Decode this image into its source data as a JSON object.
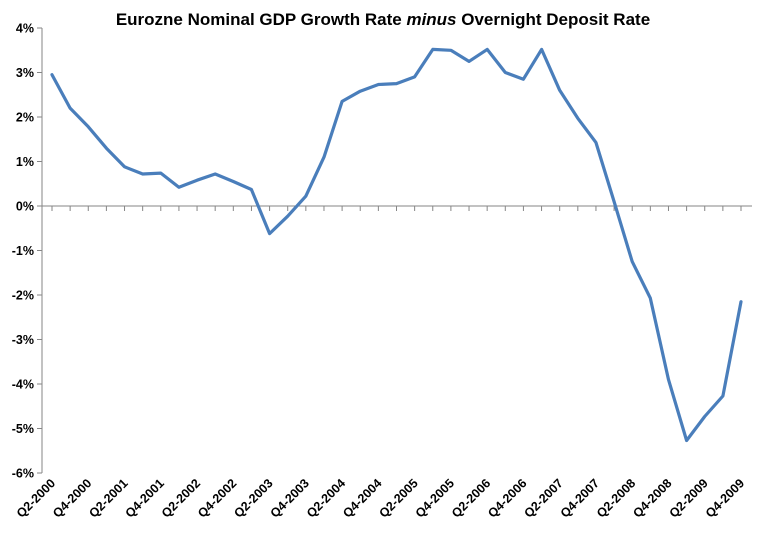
{
  "chart_data": {
    "type": "line",
    "title": {
      "part1": "Eurozne Nominal GDP Growth Rate ",
      "emph": "minus",
      "part2": " Overnight Deposit Rate"
    },
    "xlabel": "",
    "ylabel": "",
    "ylim": [
      -6,
      4
    ],
    "y_ticks": [
      "-6%",
      "-5%",
      "-4%",
      "-3%",
      "-2%",
      "-1%",
      "0%",
      "1%",
      "2%",
      "3%",
      "4%"
    ],
    "grid": false,
    "legend": "none",
    "line_color": "#4A7EBB",
    "x": [
      "Q2-2000",
      "Q3-2000",
      "Q4-2000",
      "Q1-2001",
      "Q2-2001",
      "Q3-2001",
      "Q4-2001",
      "Q1-2002",
      "Q2-2002",
      "Q3-2002",
      "Q4-2002",
      "Q1-2003",
      "Q2-2003",
      "Q3-2003",
      "Q4-2003",
      "Q1-2004",
      "Q2-2004",
      "Q3-2004",
      "Q4-2004",
      "Q1-2005",
      "Q2-2005",
      "Q3-2005",
      "Q4-2005",
      "Q1-2006",
      "Q2-2006",
      "Q3-2006",
      "Q4-2006",
      "Q1-2007",
      "Q2-2007",
      "Q3-2007",
      "Q4-2007",
      "Q1-2008",
      "Q2-2008",
      "Q3-2008",
      "Q4-2008",
      "Q1-2009",
      "Q2-2009",
      "Q3-2009",
      "Q4-2009"
    ],
    "x_tick_labels": [
      "Q2-2000",
      "Q4-2000",
      "Q2-2001",
      "Q4-2001",
      "Q2-2002",
      "Q4-2002",
      "Q2-2003",
      "Q4-2003",
      "Q2-2004",
      "Q4-2004",
      "Q2-2005",
      "Q4-2005",
      "Q2-2006",
      "Q4-2006",
      "Q2-2007",
      "Q4-2007",
      "Q2-2008",
      "Q4-2008",
      "Q2-2009",
      "Q4-2009"
    ],
    "series": [
      {
        "values": [
          2.95,
          2.2,
          1.78,
          1.3,
          0.88,
          0.72,
          0.74,
          0.42,
          0.58,
          0.72,
          0.55,
          0.37,
          -0.62,
          -0.23,
          0.22,
          1.1,
          2.35,
          2.58,
          2.73,
          2.75,
          2.9,
          3.52,
          3.5,
          3.25,
          3.52,
          3.0,
          2.85,
          3.52,
          2.6,
          1.97,
          1.43,
          0.1,
          -1.25,
          -2.07,
          -3.9,
          -5.27,
          -4.73,
          -4.27,
          -2.15
        ]
      }
    ]
  }
}
